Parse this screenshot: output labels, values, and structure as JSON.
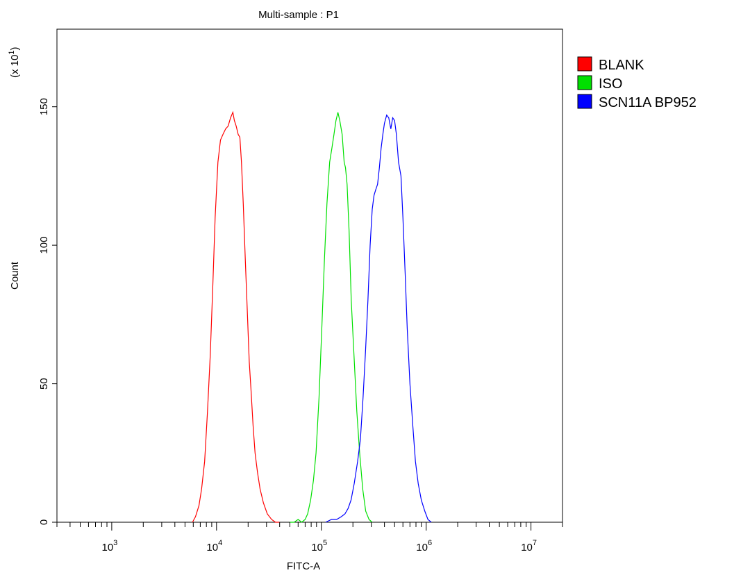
{
  "chart_data": {
    "type": "line",
    "title": "Multi-sample : P1",
    "xlabel": "FITC-A",
    "ylabel": "Count",
    "y_multiplier_label": "(x 10",
    "y_multiplier_exp": "1",
    "y_multiplier_close": ")",
    "x_scale": "log",
    "xlim": [
      300,
      20000000
    ],
    "ylim": [
      0,
      178
    ],
    "x_ticks": [
      {
        "value": 1000,
        "base": "10",
        "exp": "3"
      },
      {
        "value": 10000,
        "base": "10",
        "exp": "4"
      },
      {
        "value": 100000,
        "base": "10",
        "exp": "5"
      },
      {
        "value": 1000000,
        "base": "10",
        "exp": "6"
      },
      {
        "value": 10000000,
        "base": "10",
        "exp": "7"
      }
    ],
    "y_ticks": [
      0,
      50,
      100,
      150
    ],
    "legend_position": "right",
    "grid": false,
    "series": [
      {
        "name": "BLANK",
        "color": "#ff0000",
        "points": [
          [
            5900,
            0
          ],
          [
            6300,
            2
          ],
          [
            6800,
            6
          ],
          [
            7200,
            12
          ],
          [
            7700,
            22
          ],
          [
            8200,
            40
          ],
          [
            8700,
            60
          ],
          [
            9200,
            85
          ],
          [
            9700,
            110
          ],
          [
            10300,
            130
          ],
          [
            10900,
            138
          ],
          [
            11500,
            140
          ],
          [
            12200,
            142
          ],
          [
            12900,
            143
          ],
          [
            13600,
            146
          ],
          [
            14300,
            148
          ],
          [
            14800,
            145
          ],
          [
            15400,
            143
          ],
          [
            16100,
            140
          ],
          [
            16700,
            139
          ],
          [
            17300,
            130
          ],
          [
            18000,
            115
          ],
          [
            18800,
            95
          ],
          [
            19700,
            75
          ],
          [
            20500,
            58
          ],
          [
            21300,
            48
          ],
          [
            22300,
            35
          ],
          [
            23300,
            25
          ],
          [
            24600,
            18
          ],
          [
            26000,
            12
          ],
          [
            28000,
            7
          ],
          [
            30500,
            3
          ],
          [
            33500,
            1
          ],
          [
            36500,
            0
          ],
          [
            40000,
            0
          ]
        ]
      },
      {
        "name": "ISO",
        "color": "#00e000",
        "points": [
          [
            50000,
            0
          ],
          [
            55000,
            0
          ],
          [
            60000,
            1
          ],
          [
            65000,
            0
          ],
          [
            70000,
            1
          ],
          [
            74000,
            3
          ],
          [
            79000,
            8
          ],
          [
            84000,
            15
          ],
          [
            89000,
            25
          ],
          [
            95000,
            45
          ],
          [
            101000,
            70
          ],
          [
            107000,
            95
          ],
          [
            113000,
            115
          ],
          [
            120000,
            130
          ],
          [
            126000,
            135
          ],
          [
            132000,
            140
          ],
          [
            138000,
            145
          ],
          [
            144000,
            148
          ],
          [
            150000,
            145
          ],
          [
            158000,
            140
          ],
          [
            165000,
            130
          ],
          [
            170000,
            128
          ],
          [
            176000,
            122
          ],
          [
            184000,
            105
          ],
          [
            193000,
            80
          ],
          [
            205000,
            60
          ],
          [
            218000,
            40
          ],
          [
            232000,
            25
          ],
          [
            248000,
            12
          ],
          [
            265000,
            4
          ],
          [
            285000,
            1
          ],
          [
            305000,
            0
          ]
        ]
      },
      {
        "name": "SCN11A BP952",
        "color": "#0000ff",
        "points": [
          [
            110000,
            0
          ],
          [
            125000,
            1
          ],
          [
            140000,
            1
          ],
          [
            155000,
            2
          ],
          [
            168000,
            3
          ],
          [
            180000,
            5
          ],
          [
            192000,
            8
          ],
          [
            206000,
            14
          ],
          [
            222000,
            22
          ],
          [
            236000,
            30
          ],
          [
            250000,
            45
          ],
          [
            264000,
            62
          ],
          [
            278000,
            80
          ],
          [
            292000,
            100
          ],
          [
            306000,
            113
          ],
          [
            318000,
            118
          ],
          [
            330000,
            120
          ],
          [
            344000,
            122
          ],
          [
            358000,
            128
          ],
          [
            372000,
            135
          ],
          [
            386000,
            140
          ],
          [
            400000,
            144
          ],
          [
            420000,
            147
          ],
          [
            440000,
            146
          ],
          [
            460000,
            142
          ],
          [
            480000,
            146
          ],
          [
            500000,
            145
          ],
          [
            520000,
            140
          ],
          [
            545000,
            130
          ],
          [
            575000,
            125
          ],
          [
            600000,
            110
          ],
          [
            630000,
            90
          ],
          [
            660000,
            70
          ],
          [
            700000,
            50
          ],
          [
            745000,
            35
          ],
          [
            790000,
            22
          ],
          [
            840000,
            14
          ],
          [
            900000,
            8
          ],
          [
            970000,
            4
          ],
          [
            1040000,
            1
          ],
          [
            1120000,
            0
          ]
        ]
      }
    ]
  }
}
